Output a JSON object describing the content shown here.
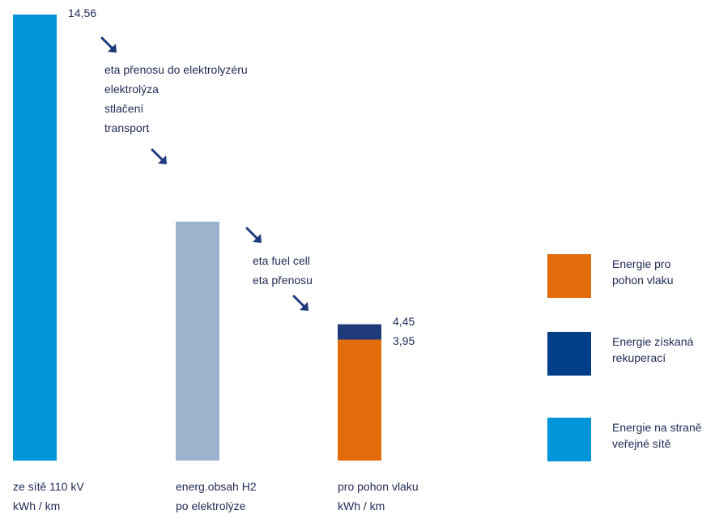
{
  "chart_data": {
    "type": "bar",
    "stacked": true,
    "categories": [
      [
        "ze sítě 110 kV",
        "kWh / km"
      ],
      [
        "energ.obsah H2",
        "po elektrolýze"
      ],
      [
        "pro pohon vlaku",
        "kWh / km"
      ]
    ],
    "series": [
      {
        "name": "Energie na straně veřejné sítě",
        "color": "#0095d9",
        "values": [
          14.56,
          0,
          0
        ]
      },
      {
        "name": "",
        "color": "#9bb3cc",
        "values": [
          0,
          7.8,
          0
        ]
      },
      {
        "name": "Energie pro pohon vlaku",
        "color": "#e36c0a",
        "values": [
          0,
          0,
          3.95
        ]
      },
      {
        "name": "Energie získaná rekuperací",
        "color": "#1f3a7a",
        "values": [
          0,
          0,
          0.5
        ]
      }
    ],
    "data_labels": [
      {
        "category": 0,
        "text": "14,56",
        "value": 14.56
      },
      {
        "category": 2,
        "text": "4,45",
        "value": 4.45
      },
      {
        "category": 2,
        "text": "3,95",
        "value": 3.95
      }
    ],
    "ylim": [
      0,
      14.56
    ],
    "grid": false,
    "legend_position": "right",
    "legend": [
      {
        "lines": [
          "Energie pro",
          "pohon vlaku"
        ],
        "color": "#e36c0a"
      },
      {
        "lines": [
          "Energie získaná",
          "rekuperací"
        ],
        "color": "#003f87"
      },
      {
        "lines": [
          "Energie na straně",
          "veřejné sítě"
        ],
        "color": "#0095d9"
      }
    ],
    "annotations": [
      {
        "between": [
          0,
          1
        ],
        "lines": [
          "eta přenosu do elektrolyzéru",
          "elektrolýza",
          "stlačení",
          "transport"
        ]
      },
      {
        "between": [
          1,
          2
        ],
        "lines": [
          "eta fuel cell",
          "eta přenosu"
        ]
      }
    ],
    "arrow_color": "#1f3a7a"
  }
}
